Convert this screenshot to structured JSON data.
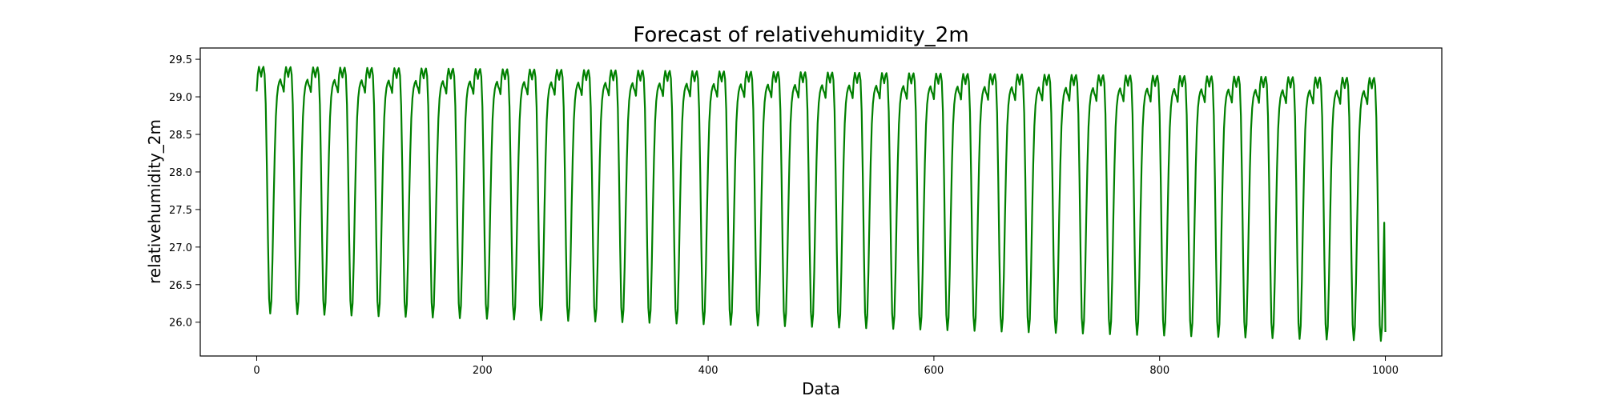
{
  "chart_data": {
    "type": "line",
    "title": "Forecast of relativehumidity_2m",
    "xlabel": "Data",
    "ylabel": "relativehumidity_2m",
    "xlim": [
      -50,
      1050
    ],
    "ylim": [
      25.55,
      29.65
    ],
    "xticks": [
      0,
      200,
      400,
      600,
      800,
      1000
    ],
    "yticks": [
      26.0,
      26.5,
      27.0,
      27.5,
      28.0,
      28.5,
      29.0,
      29.5
    ],
    "grid": false,
    "line_color": "#008000",
    "cycle": {
      "period": 24,
      "start_index": 0,
      "end_index": 999,
      "peak_start": 29.4,
      "peak_end": 29.25,
      "trough_start": 26.12,
      "trough_end": 25.75
    },
    "series": [
      {
        "points_sampled": [
          [
            0,
            29.18
          ],
          [
            3,
            29.38
          ],
          [
            6,
            29.33
          ],
          [
            9,
            29.38
          ],
          [
            12,
            27.5
          ],
          [
            14,
            26.12
          ],
          [
            24,
            29.3
          ],
          [
            30,
            29.32
          ],
          [
            33,
            29.38
          ],
          [
            38,
            26.45
          ],
          [
            50,
            29.4
          ],
          [
            57,
            29.45
          ],
          [
            62,
            26.5
          ],
          [
            80,
            29.45
          ],
          [
            86,
            26.48
          ],
          [
            104,
            29.45
          ],
          [
            110,
            26.42
          ],
          [
            200,
            29.4
          ],
          [
            206,
            26.33
          ],
          [
            400,
            29.4
          ],
          [
            406,
            26.22
          ],
          [
            600,
            29.35
          ],
          [
            606,
            26.1
          ],
          [
            800,
            29.28
          ],
          [
            806,
            25.92
          ],
          [
            950,
            29.25
          ],
          [
            957,
            25.75
          ],
          [
            973,
            29.25
          ],
          [
            980,
            25.72
          ],
          [
            995,
            29.25
          ],
          [
            999,
            25.73
          ],
          [
            1000,
            25.87
          ]
        ]
      }
    ]
  }
}
